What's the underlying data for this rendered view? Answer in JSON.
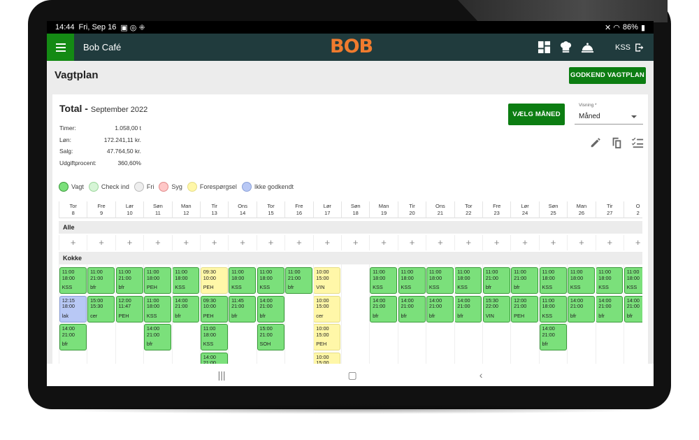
{
  "status": {
    "time": "14:44",
    "date": "Fri, Sep 16",
    "battery": "86%"
  },
  "app": {
    "name": "Bob Café",
    "logo": "BOB",
    "user": "KSS"
  },
  "page": {
    "title": "Vagtplan",
    "approve_label": "GODKEND VAGTPLAN"
  },
  "summary": {
    "title": "Total -",
    "month": "September 2022",
    "stats": [
      {
        "label": "Timer:",
        "value": "1.058,00 t"
      },
      {
        "label": "Løn:",
        "value": "172.241,11 kr."
      },
      {
        "label": "Salg:",
        "value": "47.764,50 kr."
      },
      {
        "label": "Udgiftprocent:",
        "value": "360,60%"
      }
    ]
  },
  "controls": {
    "choose_month": "VÆLG MÅNED",
    "view_label": "Visning *",
    "view_value": "Måned"
  },
  "legend": [
    {
      "label": "Vagt",
      "color": "#7be07b",
      "border": "#3a9a3a"
    },
    {
      "label": "Check ind",
      "color": "#d6f5d6",
      "border": "#9ad59a"
    },
    {
      "label": "Fri",
      "color": "#eeeeee",
      "border": "#bbbbbb"
    },
    {
      "label": "Syg",
      "color": "#ffc7c7",
      "border": "#e08a8a"
    },
    {
      "label": "Forespørgsel",
      "color": "#fff7a8",
      "border": "#e5dd88"
    },
    {
      "label": "Ikke godkendt",
      "color": "#b8c8f5",
      "border": "#8aa0d8"
    }
  ],
  "days": [
    {
      "wd": "Tor",
      "d": "8"
    },
    {
      "wd": "Fre",
      "d": "9"
    },
    {
      "wd": "Lør",
      "d": "10"
    },
    {
      "wd": "Søn",
      "d": "11"
    },
    {
      "wd": "Man",
      "d": "12"
    },
    {
      "wd": "Tir",
      "d": "13"
    },
    {
      "wd": "Ons",
      "d": "14"
    },
    {
      "wd": "Tor",
      "d": "15"
    },
    {
      "wd": "Fre",
      "d": "16"
    },
    {
      "wd": "Lør",
      "d": "17"
    },
    {
      "wd": "Søn",
      "d": "18"
    },
    {
      "wd": "Man",
      "d": "19"
    },
    {
      "wd": "Tir",
      "d": "20"
    },
    {
      "wd": "Ons",
      "d": "21"
    },
    {
      "wd": "Tor",
      "d": "22"
    },
    {
      "wd": "Fre",
      "d": "23"
    },
    {
      "wd": "Lør",
      "d": "24"
    },
    {
      "wd": "Søn",
      "d": "25"
    },
    {
      "wd": "Man",
      "d": "26"
    },
    {
      "wd": "Tir",
      "d": "27"
    },
    {
      "wd": "O",
      "d": "2"
    }
  ],
  "groups": {
    "all": "Alle",
    "cooks": "Kokke"
  },
  "shifts": [
    {
      "c": 0,
      "r": 0,
      "t1": "11:00",
      "t2": "18:00",
      "i": "KSS",
      "s": "vagt"
    },
    {
      "c": 1,
      "r": 0,
      "t1": "11:00",
      "t2": "21:00",
      "i": "bfr",
      "s": "vagt"
    },
    {
      "c": 2,
      "r": 0,
      "t1": "11:00",
      "t2": "21:00",
      "i": "bfr",
      "s": "vagt"
    },
    {
      "c": 3,
      "r": 0,
      "t1": "11:00",
      "t2": "18:00",
      "i": "PEH",
      "s": "vagt"
    },
    {
      "c": 4,
      "r": 0,
      "t1": "11:00",
      "t2": "18:00",
      "i": "KSS",
      "s": "vagt"
    },
    {
      "c": 5,
      "r": 0,
      "t1": "09:30",
      "t2": "10:00",
      "i": "PEH",
      "s": "req"
    },
    {
      "c": 6,
      "r": 0,
      "t1": "11:00",
      "t2": "18:00",
      "i": "KSS",
      "s": "vagt"
    },
    {
      "c": 7,
      "r": 0,
      "t1": "11:00",
      "t2": "18:00",
      "i": "KSS",
      "s": "vagt"
    },
    {
      "c": 8,
      "r": 0,
      "t1": "11:00",
      "t2": "21:00",
      "i": "bfr",
      "s": "vagt"
    },
    {
      "c": 9,
      "r": 0,
      "t1": "10:00",
      "t2": "15:00",
      "i": "VIN",
      "s": "req"
    },
    {
      "c": 11,
      "r": 0,
      "t1": "11:00",
      "t2": "18:00",
      "i": "KSS",
      "s": "vagt"
    },
    {
      "c": 12,
      "r": 0,
      "t1": "11:00",
      "t2": "18:00",
      "i": "KSS",
      "s": "vagt"
    },
    {
      "c": 13,
      "r": 0,
      "t1": "11:00",
      "t2": "18:00",
      "i": "KSS",
      "s": "vagt"
    },
    {
      "c": 14,
      "r": 0,
      "t1": "11:00",
      "t2": "18:00",
      "i": "KSS",
      "s": "vagt"
    },
    {
      "c": 15,
      "r": 0,
      "t1": "11:00",
      "t2": "21:00",
      "i": "bfr",
      "s": "vagt"
    },
    {
      "c": 16,
      "r": 0,
      "t1": "11:00",
      "t2": "21:00",
      "i": "bfr",
      "s": "vagt"
    },
    {
      "c": 17,
      "r": 0,
      "t1": "11:00",
      "t2": "18:00",
      "i": "KSS",
      "s": "vagt"
    },
    {
      "c": 18,
      "r": 0,
      "t1": "11:00",
      "t2": "18:00",
      "i": "KSS",
      "s": "vagt"
    },
    {
      "c": 19,
      "r": 0,
      "t1": "11:00",
      "t2": "18:00",
      "i": "KSS",
      "s": "vagt"
    },
    {
      "c": 20,
      "r": 0,
      "t1": "11:00",
      "t2": "18:00",
      "i": "KSS",
      "s": "vagt"
    },
    {
      "c": 0,
      "r": 1,
      "t1": "12:15",
      "t2": "18:00",
      "i": "lak",
      "s": "pend"
    },
    {
      "c": 1,
      "r": 1,
      "t1": "15:00",
      "t2": "15:30",
      "i": "cer",
      "s": "vagt"
    },
    {
      "c": 2,
      "r": 1,
      "t1": "12:00",
      "t2": "11:47",
      "i": "PEH",
      "s": "vagt"
    },
    {
      "c": 3,
      "r": 1,
      "t1": "11:00",
      "t2": "18:00",
      "i": "KSS",
      "s": "vagt"
    },
    {
      "c": 4,
      "r": 1,
      "t1": "14:00",
      "t2": "21:00",
      "i": "bfr",
      "s": "vagt"
    },
    {
      "c": 5,
      "r": 1,
      "t1": "09:30",
      "t2": "10:00",
      "i": "PEH",
      "s": "vagt"
    },
    {
      "c": 6,
      "r": 1,
      "t1": "11:45",
      "t2": "21:00",
      "i": "bfr",
      "s": "vagt"
    },
    {
      "c": 7,
      "r": 1,
      "t1": "14:00",
      "t2": "21:00",
      "i": "bfr",
      "s": "vagt"
    },
    {
      "c": 9,
      "r": 1,
      "t1": "10:00",
      "t2": "15:00",
      "i": "cer",
      "s": "req"
    },
    {
      "c": 11,
      "r": 1,
      "t1": "14:00",
      "t2": "21:00",
      "i": "bfr",
      "s": "vagt"
    },
    {
      "c": 12,
      "r": 1,
      "t1": "14:00",
      "t2": "21:00",
      "i": "bfr",
      "s": "vagt"
    },
    {
      "c": 13,
      "r": 1,
      "t1": "14:00",
      "t2": "21:00",
      "i": "bfr",
      "s": "vagt"
    },
    {
      "c": 14,
      "r": 1,
      "t1": "14:00",
      "t2": "21:00",
      "i": "bfr",
      "s": "vagt"
    },
    {
      "c": 15,
      "r": 1,
      "t1": "15:30",
      "t2": "22:00",
      "i": "VIN",
      "s": "vagt"
    },
    {
      "c": 16,
      "r": 1,
      "t1": "12:00",
      "t2": "21:00",
      "i": "PEH",
      "s": "vagt"
    },
    {
      "c": 17,
      "r": 1,
      "t1": "11:00",
      "t2": "18:00",
      "i": "KSS",
      "s": "vagt"
    },
    {
      "c": 18,
      "r": 1,
      "t1": "14:00",
      "t2": "21:00",
      "i": "bfr",
      "s": "vagt"
    },
    {
      "c": 19,
      "r": 1,
      "t1": "14:00",
      "t2": "21:00",
      "i": "bfr",
      "s": "vagt"
    },
    {
      "c": 20,
      "r": 1,
      "t1": "14:00",
      "t2": "21:00",
      "i": "bfr",
      "s": "vagt"
    },
    {
      "c": 0,
      "r": 2,
      "t1": "14:00",
      "t2": "21:00",
      "i": "bfr",
      "s": "vagt"
    },
    {
      "c": 3,
      "r": 2,
      "t1": "14:00",
      "t2": "21:00",
      "i": "bfr",
      "s": "vagt"
    },
    {
      "c": 5,
      "r": 2,
      "t1": "11:00",
      "t2": "18:00",
      "i": "KSS",
      "s": "vagt"
    },
    {
      "c": 7,
      "r": 2,
      "t1": "15:00",
      "t2": "21:00",
      "i": "SOH",
      "s": "vagt"
    },
    {
      "c": 9,
      "r": 2,
      "t1": "10:00",
      "t2": "15:00",
      "i": "PEH",
      "s": "req"
    },
    {
      "c": 17,
      "r": 2,
      "t1": "14:00",
      "t2": "21:00",
      "i": "bfr",
      "s": "vagt"
    },
    {
      "c": 5,
      "r": 3,
      "t1": "14:00",
      "t2": "21:00",
      "i": "",
      "s": "vagt"
    },
    {
      "c": 9,
      "r": 3,
      "t1": "10:00",
      "t2": "15:00",
      "i": "",
      "s": "req"
    }
  ]
}
